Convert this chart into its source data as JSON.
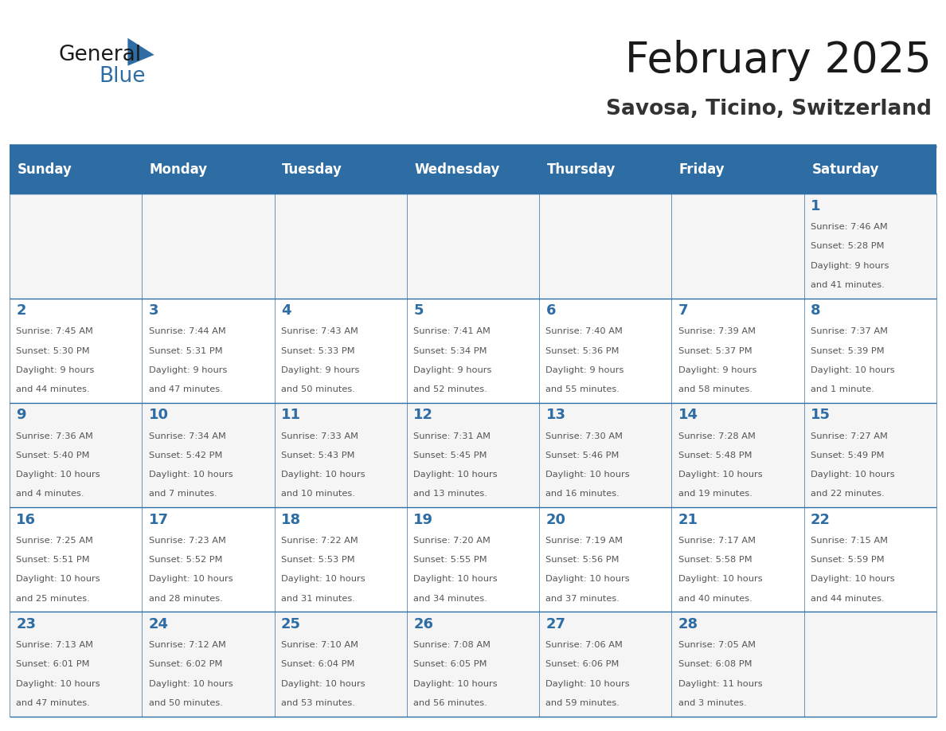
{
  "title": "February 2025",
  "subtitle": "Savosa, Ticino, Switzerland",
  "header_bg": "#2E6DA4",
  "header_text_color": "#FFFFFF",
  "cell_bg_even": "#F5F5F5",
  "cell_bg_odd": "#FFFFFF",
  "day_number_color": "#2E6DA4",
  "info_text_color": "#555555",
  "border_color": "#2E6DA4",
  "days_of_week": [
    "Sunday",
    "Monday",
    "Tuesday",
    "Wednesday",
    "Thursday",
    "Friday",
    "Saturday"
  ],
  "weeks": [
    [
      {
        "day": null,
        "sunrise": null,
        "sunset": null,
        "daylight": null
      },
      {
        "day": null,
        "sunrise": null,
        "sunset": null,
        "daylight": null
      },
      {
        "day": null,
        "sunrise": null,
        "sunset": null,
        "daylight": null
      },
      {
        "day": null,
        "sunrise": null,
        "sunset": null,
        "daylight": null
      },
      {
        "day": null,
        "sunrise": null,
        "sunset": null,
        "daylight": null
      },
      {
        "day": null,
        "sunrise": null,
        "sunset": null,
        "daylight": null
      },
      {
        "day": 1,
        "sunrise": "7:46 AM",
        "sunset": "5:28 PM",
        "daylight": "9 hours and 41 minutes."
      }
    ],
    [
      {
        "day": 2,
        "sunrise": "7:45 AM",
        "sunset": "5:30 PM",
        "daylight": "9 hours and 44 minutes."
      },
      {
        "day": 3,
        "sunrise": "7:44 AM",
        "sunset": "5:31 PM",
        "daylight": "9 hours and 47 minutes."
      },
      {
        "day": 4,
        "sunrise": "7:43 AM",
        "sunset": "5:33 PM",
        "daylight": "9 hours and 50 minutes."
      },
      {
        "day": 5,
        "sunrise": "7:41 AM",
        "sunset": "5:34 PM",
        "daylight": "9 hours and 52 minutes."
      },
      {
        "day": 6,
        "sunrise": "7:40 AM",
        "sunset": "5:36 PM",
        "daylight": "9 hours and 55 minutes."
      },
      {
        "day": 7,
        "sunrise": "7:39 AM",
        "sunset": "5:37 PM",
        "daylight": "9 hours and 58 minutes."
      },
      {
        "day": 8,
        "sunrise": "7:37 AM",
        "sunset": "5:39 PM",
        "daylight": "10 hours and 1 minute."
      }
    ],
    [
      {
        "day": 9,
        "sunrise": "7:36 AM",
        "sunset": "5:40 PM",
        "daylight": "10 hours and 4 minutes."
      },
      {
        "day": 10,
        "sunrise": "7:34 AM",
        "sunset": "5:42 PM",
        "daylight": "10 hours and 7 minutes."
      },
      {
        "day": 11,
        "sunrise": "7:33 AM",
        "sunset": "5:43 PM",
        "daylight": "10 hours and 10 minutes."
      },
      {
        "day": 12,
        "sunrise": "7:31 AM",
        "sunset": "5:45 PM",
        "daylight": "10 hours and 13 minutes."
      },
      {
        "day": 13,
        "sunrise": "7:30 AM",
        "sunset": "5:46 PM",
        "daylight": "10 hours and 16 minutes."
      },
      {
        "day": 14,
        "sunrise": "7:28 AM",
        "sunset": "5:48 PM",
        "daylight": "10 hours and 19 minutes."
      },
      {
        "day": 15,
        "sunrise": "7:27 AM",
        "sunset": "5:49 PM",
        "daylight": "10 hours and 22 minutes."
      }
    ],
    [
      {
        "day": 16,
        "sunrise": "7:25 AM",
        "sunset": "5:51 PM",
        "daylight": "10 hours and 25 minutes."
      },
      {
        "day": 17,
        "sunrise": "7:23 AM",
        "sunset": "5:52 PM",
        "daylight": "10 hours and 28 minutes."
      },
      {
        "day": 18,
        "sunrise": "7:22 AM",
        "sunset": "5:53 PM",
        "daylight": "10 hours and 31 minutes."
      },
      {
        "day": 19,
        "sunrise": "7:20 AM",
        "sunset": "5:55 PM",
        "daylight": "10 hours and 34 minutes."
      },
      {
        "day": 20,
        "sunrise": "7:19 AM",
        "sunset": "5:56 PM",
        "daylight": "10 hours and 37 minutes."
      },
      {
        "day": 21,
        "sunrise": "7:17 AM",
        "sunset": "5:58 PM",
        "daylight": "10 hours and 40 minutes."
      },
      {
        "day": 22,
        "sunrise": "7:15 AM",
        "sunset": "5:59 PM",
        "daylight": "10 hours and 44 minutes."
      }
    ],
    [
      {
        "day": 23,
        "sunrise": "7:13 AM",
        "sunset": "6:01 PM",
        "daylight": "10 hours and 47 minutes."
      },
      {
        "day": 24,
        "sunrise": "7:12 AM",
        "sunset": "6:02 PM",
        "daylight": "10 hours and 50 minutes."
      },
      {
        "day": 25,
        "sunrise": "7:10 AM",
        "sunset": "6:04 PM",
        "daylight": "10 hours and 53 minutes."
      },
      {
        "day": 26,
        "sunrise": "7:08 AM",
        "sunset": "6:05 PM",
        "daylight": "10 hours and 56 minutes."
      },
      {
        "day": 27,
        "sunrise": "7:06 AM",
        "sunset": "6:06 PM",
        "daylight": "10 hours and 59 minutes."
      },
      {
        "day": 28,
        "sunrise": "7:05 AM",
        "sunset": "6:08 PM",
        "daylight": "11 hours and 3 minutes."
      },
      {
        "day": null,
        "sunrise": null,
        "sunset": null,
        "daylight": null
      }
    ]
  ]
}
